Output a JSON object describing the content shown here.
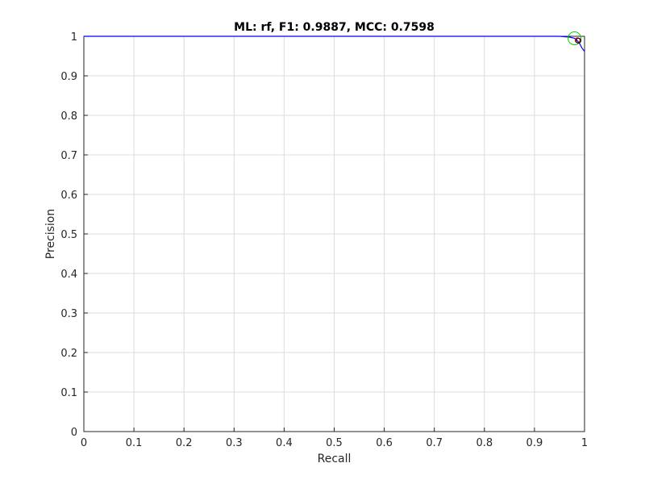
{
  "chart_data": {
    "type": "line",
    "title": "ML: rf, F1: 0.9887, MCC: 0.7598",
    "xlabel": "Recall",
    "ylabel": "Precision",
    "xlim": [
      0,
      1
    ],
    "ylim": [
      0,
      1
    ],
    "grid": true,
    "x_ticks": [
      "0",
      "0.1",
      "0.2",
      "0.3",
      "0.4",
      "0.5",
      "0.6",
      "0.7",
      "0.8",
      "0.9",
      "1"
    ],
    "y_ticks": [
      "0",
      "0.1",
      "0.2",
      "0.3",
      "0.4",
      "0.5",
      "0.6",
      "0.7",
      "0.8",
      "0.9",
      "1"
    ],
    "series": [
      {
        "color": "#0000ff",
        "x": [
          0.0,
          0.2,
          0.4,
          0.6,
          0.8,
          0.9,
          0.95,
          0.97,
          0.98,
          0.985,
          0.99,
          0.995,
          1.0
        ],
        "y": [
          1.0,
          1.0,
          1.0,
          1.0,
          1.0,
          1.0,
          1.0,
          0.998,
          0.995,
          0.99,
          0.982,
          0.97,
          0.962
        ]
      }
    ],
    "markers": [
      {
        "shape": "circle",
        "color": "#00cc00",
        "x": 0.98,
        "y": 0.995
      },
      {
        "shape": "circle-small",
        "color": "#cc0000",
        "x": 0.986,
        "y": 0.99
      },
      {
        "shape": "circle-small",
        "color": "#000000",
        "x": 0.988,
        "y": 0.989
      }
    ]
  }
}
